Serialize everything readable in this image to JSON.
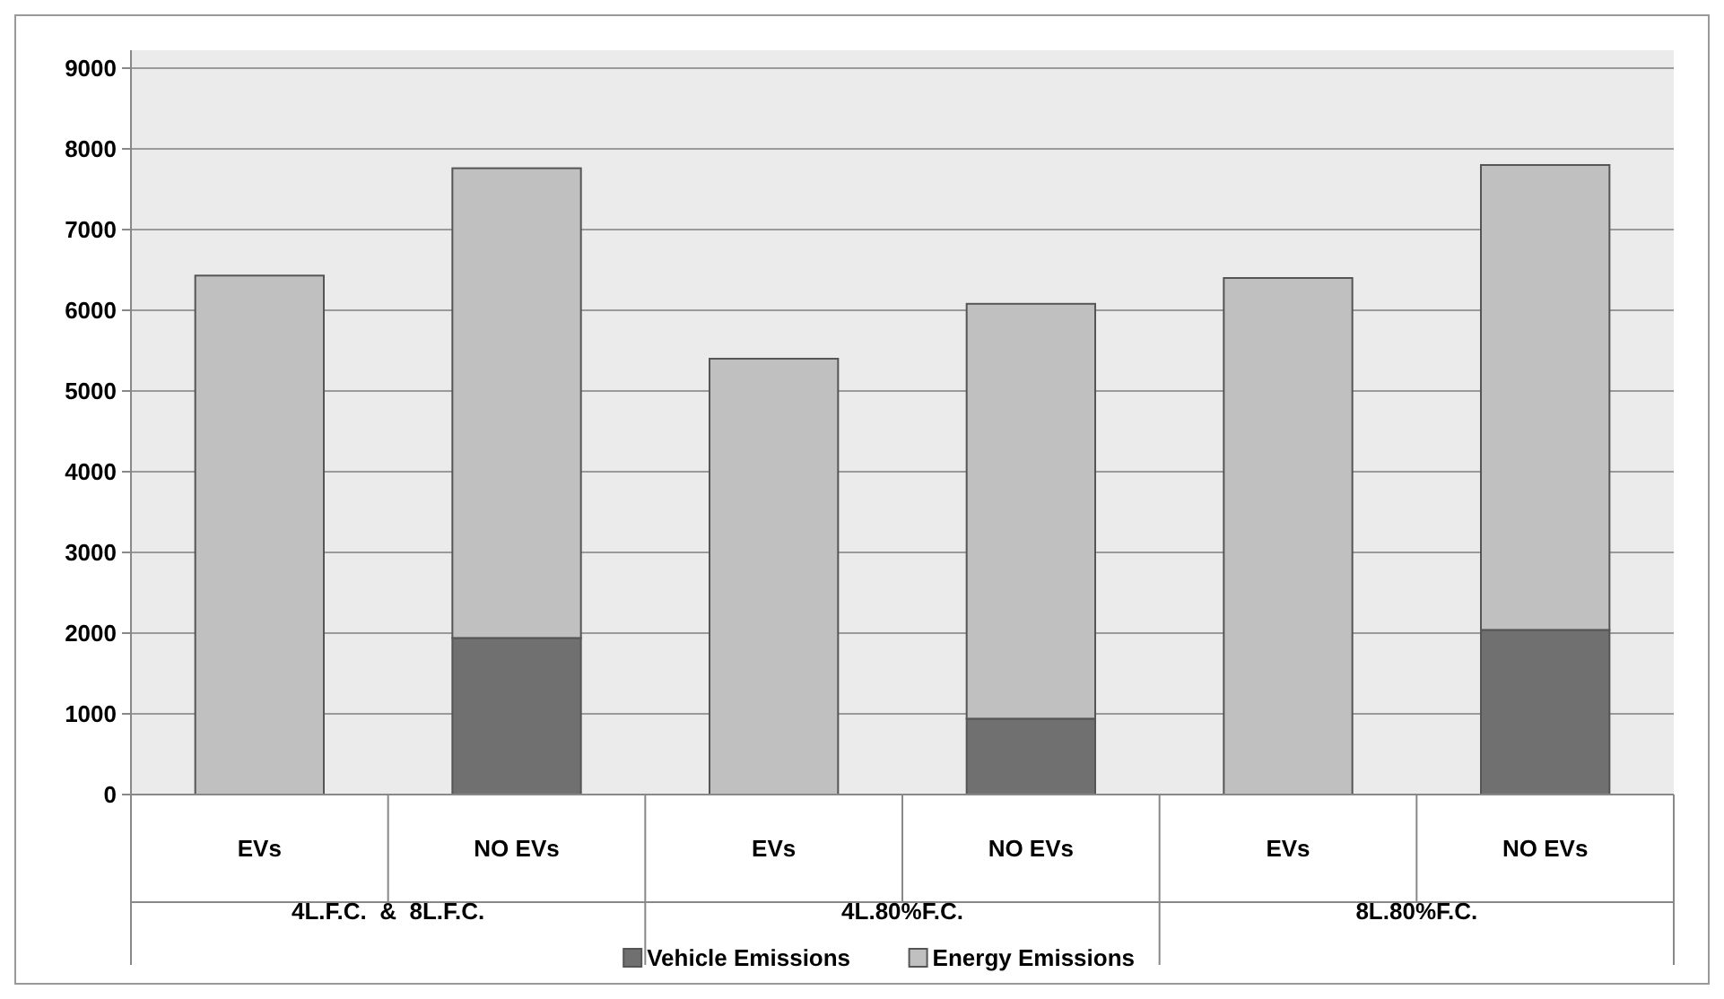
{
  "chart_data": {
    "type": "bar",
    "stacked": true,
    "categories": [
      "EVs",
      "NO EVs",
      "EVs",
      "NO EVs",
      "EVs",
      "NO EVs"
    ],
    "annotations": [
      "4L.F.C.  &  8L.F.C.",
      "4L.80%F.C.",
      "8L.80%F.C."
    ],
    "series": [
      {
        "name": "Vehicle Emissions",
        "color": "#707070",
        "values": [
          0,
          1940,
          0,
          940,
          0,
          2040
        ]
      },
      {
        "name": "Energy Emissions",
        "color": "#c0c0c0",
        "values": [
          6430,
          5820,
          5400,
          5140,
          6400,
          5760
        ]
      }
    ],
    "ylim": [
      0,
      9000
    ],
    "yticks": [
      0,
      1000,
      2000,
      3000,
      4000,
      5000,
      6000,
      7000,
      8000,
      9000
    ],
    "grid": "y",
    "legend": "bottom"
  }
}
